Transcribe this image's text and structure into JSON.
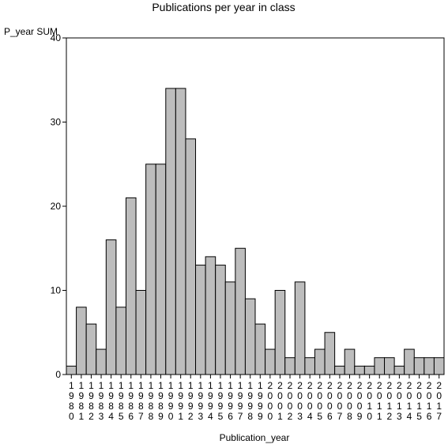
{
  "chart_data": {
    "type": "bar",
    "title": "Publications per year in class",
    "ylabel": "P_year SUM",
    "xlabel": "Publication_year",
    "ylim": [
      0,
      40
    ],
    "yticks": [
      0,
      10,
      20,
      30,
      40
    ],
    "grid": false,
    "categories": [
      "1980",
      "1981",
      "1982",
      "1983",
      "1984",
      "1985",
      "1986",
      "1987",
      "1988",
      "1989",
      "1990",
      "1991",
      "1992",
      "1993",
      "1994",
      "1995",
      "1996",
      "1997",
      "1998",
      "1999",
      "2000",
      "2001",
      "2002",
      "2003",
      "2004",
      "2005",
      "2006",
      "2007",
      "2008",
      "2009",
      "2010",
      "2011",
      "2012",
      "2013",
      "2014",
      "2015",
      "2016",
      "2017"
    ],
    "values": [
      1,
      8,
      6,
      3,
      16,
      8,
      21,
      10,
      25,
      25,
      34,
      34,
      28,
      13,
      14,
      13,
      11,
      15,
      9,
      6,
      3,
      10,
      2,
      11,
      2,
      3,
      5,
      1,
      3,
      1,
      1,
      2,
      2,
      1,
      3,
      2,
      2,
      2
    ],
    "bar_color": "#bdbdbd"
  }
}
